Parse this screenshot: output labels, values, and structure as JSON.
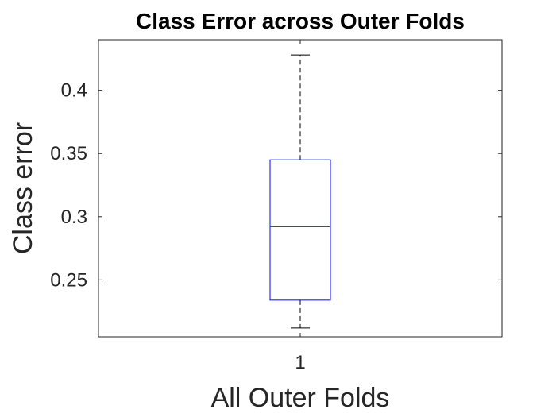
{
  "chart_data": {
    "type": "box",
    "title": "Class Error across Outer Folds",
    "xlabel": "All Outer Folds",
    "ylabel": "Class error",
    "categories": [
      "1"
    ],
    "ylim": [
      0.205,
      0.44
    ],
    "yticks": [
      0.25,
      0.3,
      0.35,
      0.4
    ],
    "ytick_labels": [
      "0.25",
      "0.3",
      "0.35",
      "0.4"
    ],
    "boxes": [
      {
        "category": "1",
        "whisker_low": 0.212,
        "q1": 0.234,
        "median": 0.292,
        "q3": 0.345,
        "whisker_high": 0.428
      }
    ],
    "grid": false,
    "colors": {
      "box": "#0000ff",
      "median": "#ff0000",
      "whisker": "#000000",
      "axis": "#262626"
    }
  }
}
